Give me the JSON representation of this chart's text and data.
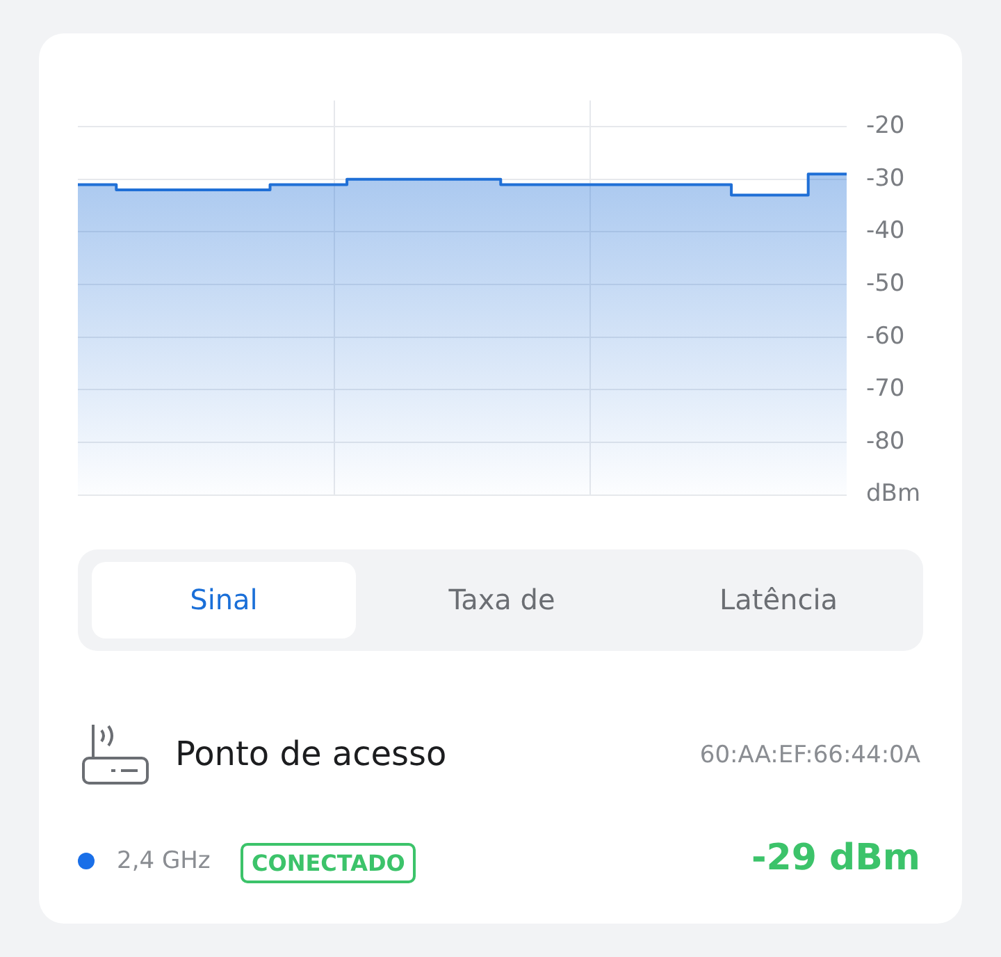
{
  "chart_data": {
    "type": "area",
    "categories": [
      null,
      null,
      null,
      null,
      null,
      null,
      null,
      null,
      null,
      null,
      null,
      null,
      null,
      null,
      null,
      null,
      null,
      null,
      null,
      null,
      null
    ],
    "series": [
      {
        "type": "step",
        "color": "#1f6fd6",
        "values": [
          -31,
          -32,
          -32,
          -32,
          -32,
          -31,
          -31,
          -30,
          -30,
          -30,
          -30,
          -31,
          -31,
          -31,
          -31,
          -31,
          -31,
          -33,
          -33,
          -29,
          -29
        ]
      }
    ],
    "ylim": [
      -90,
      -15
    ],
    "yticks": [
      {
        "value": -90,
        "label": "dBm"
      },
      -80,
      -70,
      -60,
      -50,
      -40,
      -30,
      -20
    ],
    "grid": true,
    "marker": "none",
    "annotations": [
      "Sinal",
      "Taxa de",
      "Latência",
      "Ponto de acesso",
      "60:AA:EF:66:44:0A",
      "2,4 GHz",
      "CONECTADO",
      "-29 dBm"
    ]
  }
}
